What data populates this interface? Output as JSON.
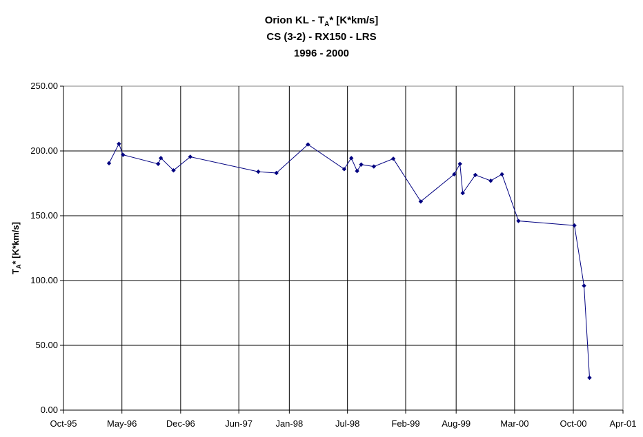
{
  "chart_data": {
    "type": "line",
    "title_lines": [
      {
        "text": "Orion KL - T",
        "sub": "A",
        "tail": "* [K*km/s]"
      },
      {
        "text": "CS (3-2) - RX150 - LRS"
      },
      {
        "text": "1996 - 2000"
      }
    ],
    "ylabel": {
      "text": "T",
      "sub": "A",
      "tail": "* [K*km/s]"
    },
    "xlabel": "",
    "ylim": [
      0,
      250
    ],
    "yticks": [
      {
        "value": 0,
        "label": "0.00"
      },
      {
        "value": 50,
        "label": "50.00"
      },
      {
        "value": 100,
        "label": "100.00"
      },
      {
        "value": 150,
        "label": "150.00"
      },
      {
        "value": 200,
        "label": "200.00"
      },
      {
        "value": 250,
        "label": "250.00"
      }
    ],
    "xlim": [
      "1995-10-01",
      "2001-04-01"
    ],
    "xticks": [
      {
        "value": "1995-10-01",
        "label": "Oct-95"
      },
      {
        "value": "1996-05-01",
        "label": "May-96"
      },
      {
        "value": "1996-12-01",
        "label": "Dec-96"
      },
      {
        "value": "1997-07-01",
        "label": "Jun-97"
      },
      {
        "value": "1998-01-01",
        "label": "Jan-98"
      },
      {
        "value": "1998-08-01",
        "label": "Jul-98"
      },
      {
        "value": "1999-03-01",
        "label": "Feb-99"
      },
      {
        "value": "1999-09-01",
        "label": "Aug-99"
      },
      {
        "value": "2000-04-01",
        "label": "Mar-00"
      },
      {
        "value": "2000-11-01",
        "label": "Oct-00"
      },
      {
        "value": "2001-05-01",
        "label": "Apr-01"
      }
    ],
    "grid": true,
    "series": [
      {
        "color": "#000080",
        "points": [
          {
            "x": "1996-03-15",
            "y": 190.5
          },
          {
            "x": "1996-04-20",
            "y": 205.5
          },
          {
            "x": "1996-05-05",
            "y": 197.0
          },
          {
            "x": "1996-09-10",
            "y": 190.0
          },
          {
            "x": "1996-09-20",
            "y": 194.5
          },
          {
            "x": "1996-11-05",
            "y": 185.0
          },
          {
            "x": "1997-01-05",
            "y": 195.5
          },
          {
            "x": "1997-09-10",
            "y": 184.0
          },
          {
            "x": "1997-11-15",
            "y": 183.0
          },
          {
            "x": "1998-03-10",
            "y": 205.0
          },
          {
            "x": "1998-07-20",
            "y": 186.0
          },
          {
            "x": "1998-08-15",
            "y": 194.5
          },
          {
            "x": "1998-09-05",
            "y": 184.5
          },
          {
            "x": "1998-09-20",
            "y": 189.5
          },
          {
            "x": "1998-11-05",
            "y": 188.0
          },
          {
            "x": "1999-01-15",
            "y": 194.0
          },
          {
            "x": "1999-04-25",
            "y": 161.0
          },
          {
            "x": "1999-08-25",
            "y": 182.0
          },
          {
            "x": "1999-09-15",
            "y": 190.0
          },
          {
            "x": "1999-09-25",
            "y": 167.5
          },
          {
            "x": "1999-11-10",
            "y": 181.5
          },
          {
            "x": "2000-01-05",
            "y": 177.0
          },
          {
            "x": "2000-02-15",
            "y": 182.0
          },
          {
            "x": "2000-04-15",
            "y": 146.0
          },
          {
            "x": "2000-11-05",
            "y": 142.5
          },
          {
            "x": "2000-12-10",
            "y": 96.0
          },
          {
            "x": "2000-12-30",
            "y": 25.0
          }
        ]
      }
    ]
  }
}
